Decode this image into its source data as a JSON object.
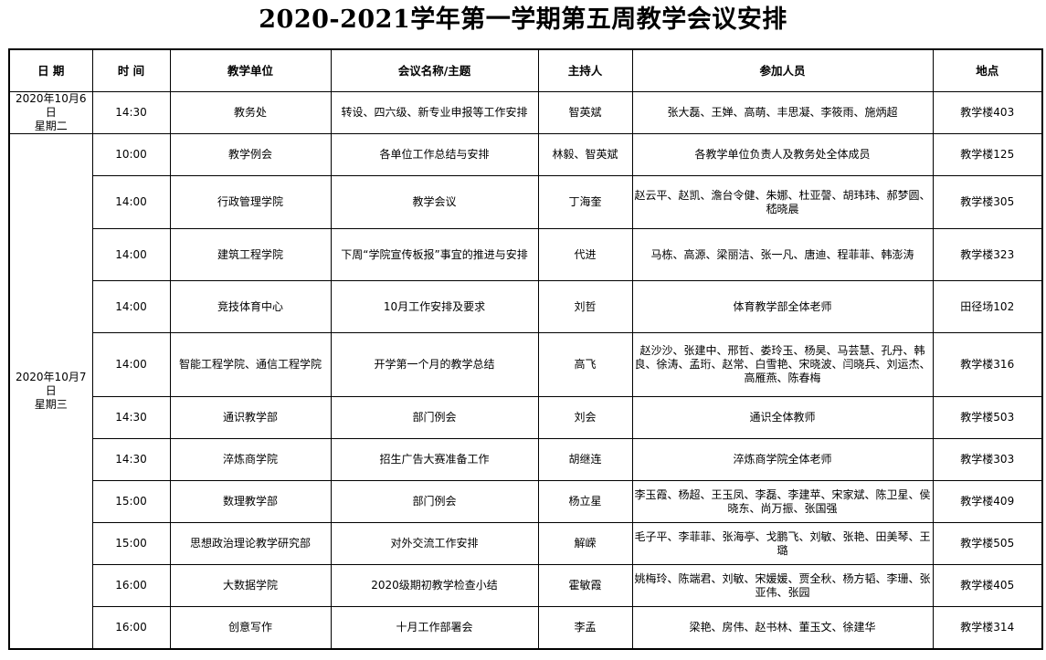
{
  "title": "2020-2021学年第一学期第五周教学会议安排",
  "headers": [
    "日 期",
    "时 间",
    "教学单位",
    "会议名称/主题",
    "主持人",
    "参加人员",
    "地点"
  ],
  "groups": [
    {
      "date": "2020年10月6日",
      "weekday": "星期二",
      "rows": [
        {
          "time": "14:30",
          "unit": "教务处",
          "topic": "转设、四六级、新专业申报等工作安排",
          "host": "智英斌",
          "attendees": "张大磊、王婵、高萌、丰思凝、李筱雨、施炳超",
          "location": "教学楼403"
        }
      ]
    },
    {
      "date": "2020年10月7日",
      "weekday": "星期三",
      "rows": [
        {
          "time": "10:00",
          "unit": "教学例会",
          "topic": "各单位工作总结与安排",
          "host": "林毅、智英斌",
          "attendees": "各教学单位负责人及教务处全体成员",
          "location": "教学楼125"
        },
        {
          "time": "14:00",
          "unit": "行政管理学院",
          "topic": "教学会议",
          "host": "丁海奎",
          "attendees": "赵云平、赵凯、澹台令健、朱娜、杜亚謦、胡玮玮、郝梦圆、嵇晓晨",
          "location": "教学楼305"
        },
        {
          "time": "14:00",
          "unit": "建筑工程学院",
          "topic": "下周“学院宣传板报”事宜的推进与安排",
          "host": "代进",
          "attendees": "马栋、高源、梁丽洁、张一凡、唐迪、程菲菲、韩澎涛",
          "location": "教学楼323"
        },
        {
          "time": "14:00",
          "unit": "竞技体育中心",
          "topic": "10月工作安排及要求",
          "host": "刘哲",
          "attendees": "体育教学部全体老师",
          "location": "田径场102"
        },
        {
          "time": "14:00",
          "unit": "智能工程学院、通信工程学院",
          "topic": "开学第一个月的教学总结",
          "host": "高飞",
          "attendees": "赵沙沙、张建中、邢哲、娄玲玉、杨昊、马芸慧、孔丹、韩良、徐涛、孟珩、赵常、白雪艳、宋晓波、闫晓兵、刘运杰、高雁燕、陈春梅",
          "location": "教学楼316"
        },
        {
          "time": "14:30",
          "unit": "通识教学部",
          "topic": "部门例会",
          "host": "刘会",
          "attendees": "通识全体教师",
          "location": "教学楼503"
        },
        {
          "time": "14:30",
          "unit": "淬炼商学院",
          "topic": "招生广告大赛准备工作",
          "host": "胡继连",
          "attendees": "淬炼商学院全体老师",
          "location": "教学楼303"
        },
        {
          "time": "15:00",
          "unit": "数理教学部",
          "topic": "部门例会",
          "host": "杨立星",
          "attendees": "李玉霞、杨超、王玉凤、李磊、李建苹、宋家斌、陈卫星、侯晓东、尚万振、张国强",
          "location": "教学楼409"
        },
        {
          "time": "15:00",
          "unit": "思想政治理论教学研究部",
          "topic": "对外交流工作安排",
          "host": "解嵘",
          "attendees": "毛子平、李菲菲、张海亭、戈鹏飞、刘敏、张艳、田美琴、王璐",
          "location": "教学楼505"
        },
        {
          "time": "16:00",
          "unit": "大数据学院",
          "topic": "2020级期初教学检查小结",
          "host": "霍敏霞",
          "attendees": "姚梅玲、陈端君、刘敏、宋媛媛、贾全秋、杨方韬、李珊、张亚伟、张园",
          "location": "教学楼405"
        },
        {
          "time": "16:00",
          "unit": "创意写作",
          "topic": "十月工作部署会",
          "host": "李孟",
          "attendees": "梁艳、房伟、赵书林、董玉文、徐建华",
          "location": "教学楼314"
        }
      ]
    }
  ]
}
